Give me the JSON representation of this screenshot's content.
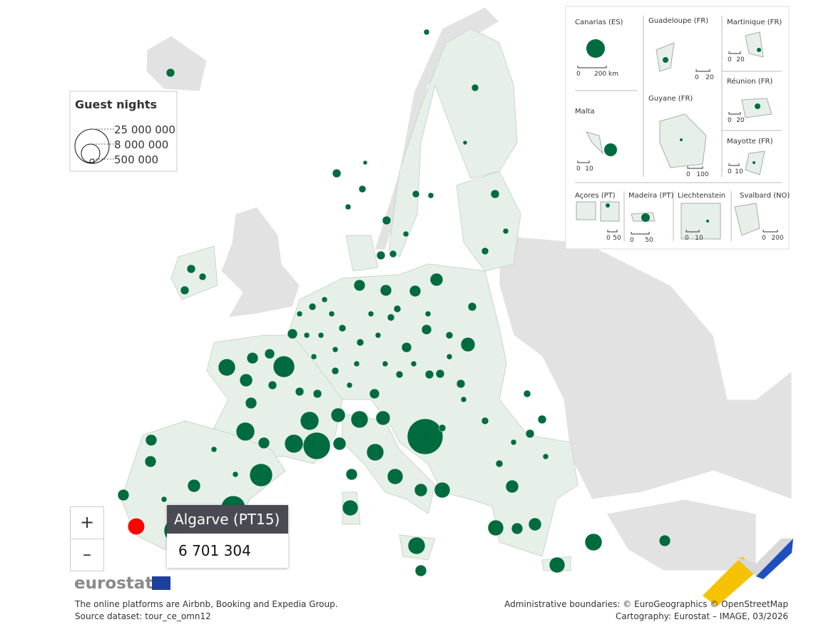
{
  "legend": {
    "title": "Guest nights",
    "labels": [
      "25 000 000",
      "8 000 000",
      "500 000"
    ]
  },
  "insets": [
    {
      "name": "Canarias (ES)",
      "scale": [
        "0",
        "200 km"
      ]
    },
    {
      "name": "Guadeloupe (FR)",
      "scale": [
        "0",
        "20"
      ]
    },
    {
      "name": "Martinique (FR)",
      "scale": [
        "0",
        "20"
      ]
    },
    {
      "name": "Réunion (FR)",
      "scale": [
        "0",
        "20"
      ]
    },
    {
      "name": "Malta",
      "scale": [
        "0",
        "10"
      ]
    },
    {
      "name": "Guyane (FR)",
      "scale": [
        "0",
        "100"
      ]
    },
    {
      "name": "Mayotte (FR)",
      "scale": [
        "0",
        "10"
      ]
    },
    {
      "name": "Açores (PT)",
      "scale": [
        "0",
        "50"
      ]
    },
    {
      "name": "Madeira (PT)",
      "scale": [
        "0",
        "50"
      ]
    },
    {
      "name": "Liechtenstein",
      "scale": [
        "0",
        "10"
      ]
    },
    {
      "name": "Svalbard (NO)",
      "scale": [
        "0",
        "200"
      ]
    }
  ],
  "zoom": {
    "in": "+",
    "out": "–"
  },
  "tooltip": {
    "title": "Algarve (PT15)",
    "value": "6 701 304"
  },
  "brand": "eurostat",
  "footer": {
    "left": [
      "The online platforms are Airbnb, Booking and Expedia Group.",
      "Source dataset: tour_ce_omn12"
    ],
    "right": [
      "Administrative boundaries: © EuroGeographics © OpenStreetMap",
      "Cartography: Eurostat – IMAGE, 03/2026"
    ]
  }
}
